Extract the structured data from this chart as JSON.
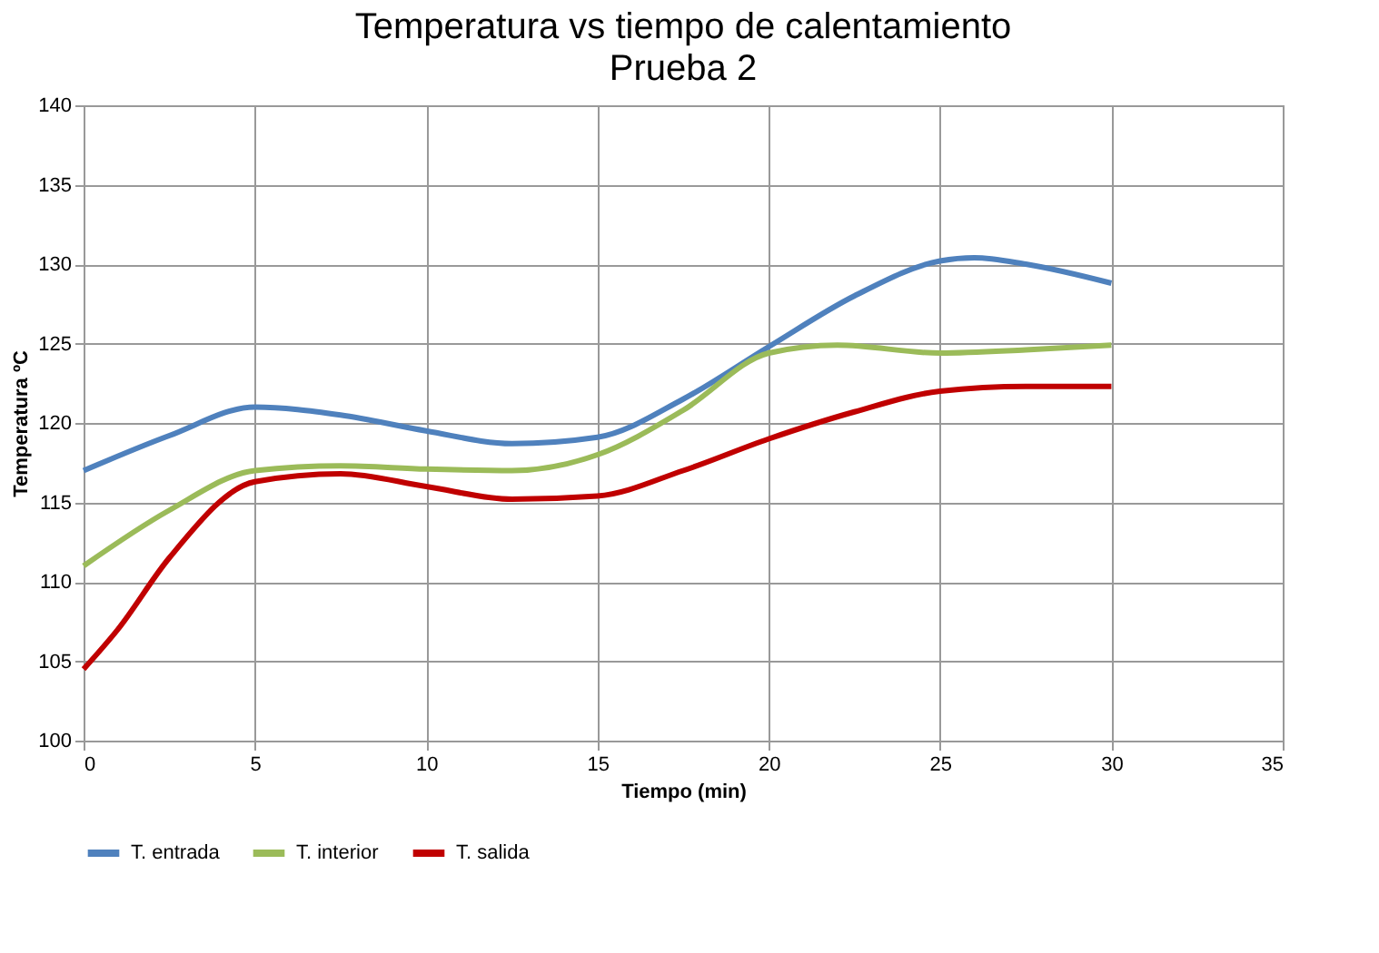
{
  "chart_data": {
    "type": "line",
    "title": "Temperatura vs tiempo de calentamiento",
    "subtitle": "Prueba 2",
    "xlabel": "Tiempo (min)",
    "ylabel": "Temperatura ºC",
    "xlim": [
      0,
      35
    ],
    "xticks": [
      0,
      5,
      10,
      15,
      20,
      25,
      30,
      35
    ],
    "ylim": [
      100,
      140
    ],
    "yticks": [
      100,
      105,
      110,
      115,
      120,
      125,
      130,
      135,
      140
    ],
    "grid": true,
    "legend": "bottom",
    "marker": "none",
    "line_style": "solid",
    "series": [
      {
        "name": "T. entrada",
        "color": "#4f81bd",
        "x": [
          0,
          2.5,
          5,
          7.5,
          10,
          12.5,
          15,
          17.5,
          20,
          22.5,
          25,
          26,
          27.5,
          30
        ],
        "values": [
          117,
          119.2,
          121,
          120.5,
          119.5,
          118.7,
          119.1,
          121.5,
          124.8,
          128,
          130.2,
          130.4,
          130,
          128.8
        ]
      },
      {
        "name": "T. interior",
        "color": "#9bbb59",
        "x": [
          0,
          2.5,
          5,
          7.5,
          10,
          12.5,
          15,
          17.5,
          20,
          22,
          25,
          27.5,
          30
        ],
        "values": [
          111,
          114.5,
          117,
          117.3,
          117.1,
          117,
          118,
          120.8,
          124.4,
          124.9,
          124.4,
          124.6,
          124.9
        ]
      },
      {
        "name": "T. salida",
        "color": "#c00000",
        "x": [
          0,
          1,
          2.5,
          5,
          7.5,
          10,
          12.5,
          15,
          17.5,
          20,
          22.5,
          25,
          27.5,
          30
        ],
        "values": [
          104.5,
          107,
          111.5,
          116.3,
          116.8,
          116,
          115.2,
          115.4,
          117,
          119,
          120.7,
          122,
          122.3,
          122.3
        ]
      }
    ]
  }
}
